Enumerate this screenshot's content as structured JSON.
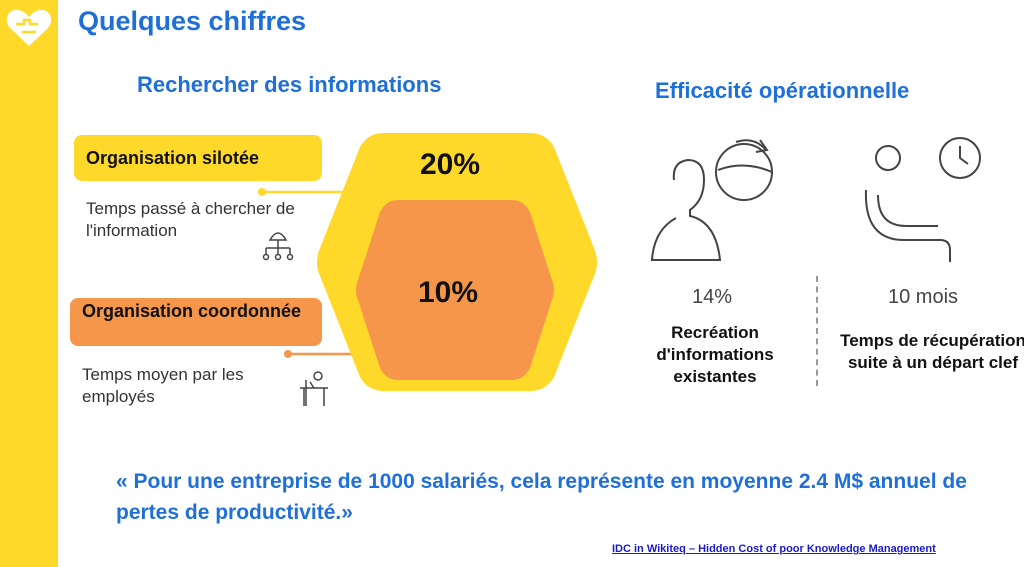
{
  "title": "Quelques chiffres",
  "left": {
    "heading": "Rechercher des informations",
    "silo": {
      "label": "Organisation silotée",
      "description": "Temps passé à chercher de l'information",
      "value": "20%"
    },
    "coord": {
      "label": "Organisation coordonnée",
      "description": "Temps moyen par les employés",
      "value": "10%"
    }
  },
  "right": {
    "heading": "Efficacité opérationnelle",
    "stat1": {
      "value": "14%",
      "label": "Recréation d'informations existantes"
    },
    "stat2": {
      "value": "10 mois",
      "label": "Temps de récupération suite à un départ clef"
    }
  },
  "quote": "« Pour une entreprise de 1000 salariés, cela représente en moyenne 2.4 M$ annuel de pertes de productivité.»",
  "source": "IDC in Wikiteq – Hidden Cost of poor Knowledge Management",
  "colors": {
    "accent_blue": "#1E6FD9",
    "yellow": "#FFD929",
    "orange": "#F5964B"
  },
  "icons": [
    "puzzle-heart-logo-icon",
    "org-chart-icon",
    "desk-worker-icon",
    "person-refresh-icon",
    "seated-person-clock-icon"
  ]
}
